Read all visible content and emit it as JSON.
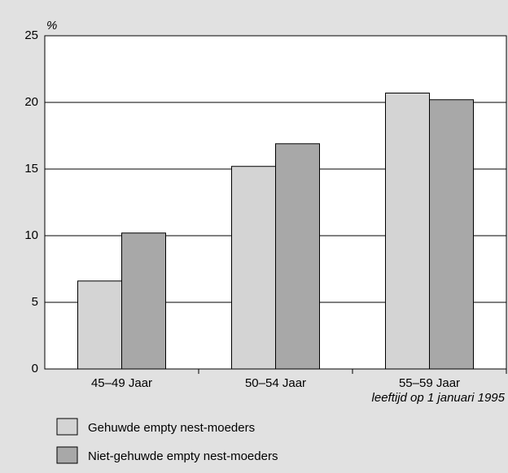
{
  "chart_data": {
    "type": "bar",
    "y_unit_label": "%",
    "x_note": "leeftijd op 1 januari 1995",
    "categories": [
      "45–49 Jaar",
      "50–54 Jaar",
      "55–59 Jaar"
    ],
    "series": [
      {
        "name": "Gehuwde empty nest-moeders",
        "color": "#d4d4d4",
        "values": [
          6.6,
          15.2,
          20.7
        ]
      },
      {
        "name": "Niet-gehuwde empty nest-moeders",
        "color": "#a8a8a8",
        "values": [
          10.2,
          16.9,
          20.2
        ]
      }
    ],
    "ylim": [
      0,
      25
    ],
    "yticks": [
      0,
      5,
      10,
      15,
      20,
      25
    ],
    "grid": true
  }
}
